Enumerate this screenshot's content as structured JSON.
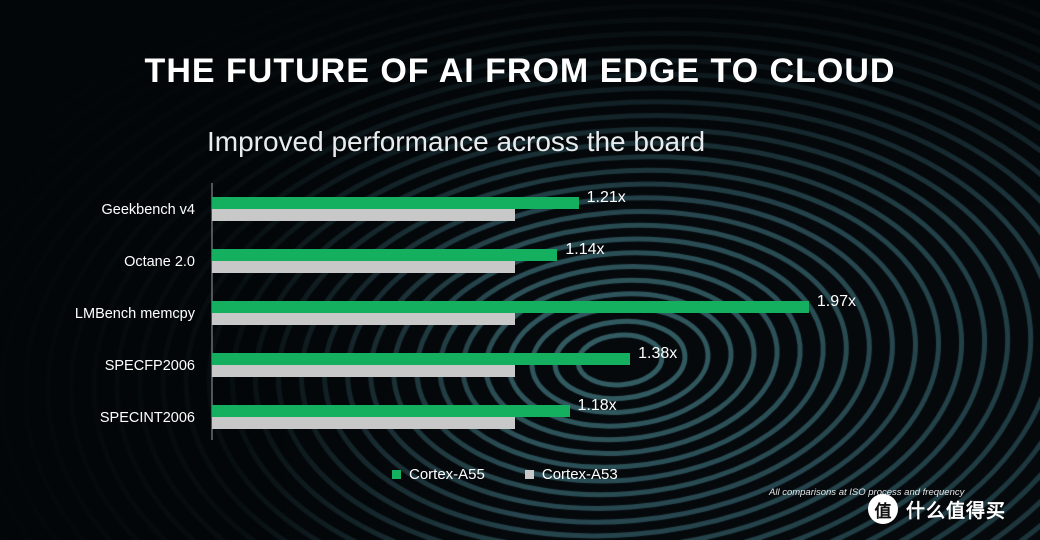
{
  "title": "THE FUTURE OF AI FROM EDGE TO CLOUD",
  "subtitle": "Improved performance across the board",
  "footnote": "All comparisons at ISO process and frequency",
  "watermark": {
    "symbol": "值",
    "text": "什么值得买"
  },
  "colors": {
    "a55": "#14b05f",
    "a53": "#c8c8c8",
    "background": "#05090c"
  },
  "chart_data": {
    "type": "bar",
    "orientation": "horizontal",
    "categories": [
      "Geekbench v4",
      "Octane 2.0",
      "LMBench memcpy",
      "SPECFP2006",
      "SPECINT2006"
    ],
    "series": [
      {
        "name": "Cortex-A55",
        "values": [
          1.21,
          1.14,
          1.97,
          1.38,
          1.18
        ],
        "labels": [
          "1.21x",
          "1.14x",
          "1.97x",
          "1.38x",
          "1.18x"
        ]
      },
      {
        "name": "Cortex-A53",
        "values": [
          1.0,
          1.0,
          1.0,
          1.0,
          1.0
        ]
      }
    ],
    "xlim": [
      0,
      2.0
    ],
    "grid": false,
    "legend": "bottom"
  }
}
